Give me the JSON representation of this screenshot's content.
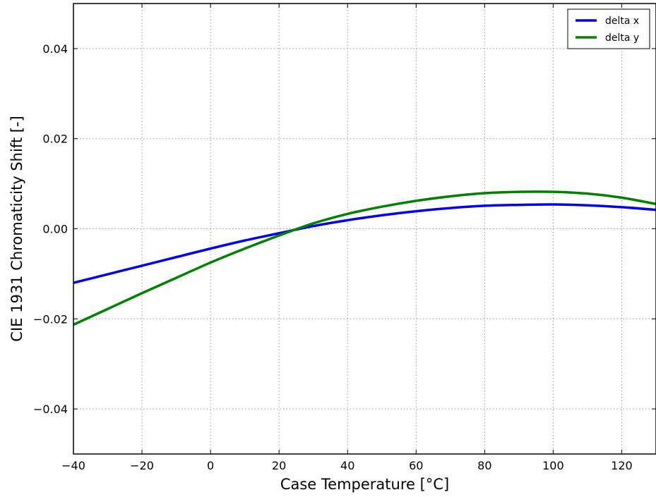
{
  "chart_data": {
    "type": "line",
    "title": "",
    "xlabel": "Case Temperature [°C]",
    "ylabel": "CIE 1931 Chromaticity Shift  [-]",
    "xlim": [
      -40,
      130
    ],
    "ylim": [
      -0.05,
      0.05
    ],
    "xticks": [
      -40,
      -20,
      0,
      20,
      40,
      60,
      80,
      100,
      120
    ],
    "yticks": [
      -0.04,
      -0.02,
      0.0,
      0.02,
      0.04
    ],
    "xtick_labels": [
      "−40",
      "−20",
      "0",
      "20",
      "40",
      "60",
      "80",
      "100",
      "120"
    ],
    "ytick_labels": [
      "−0.04",
      "−0.02",
      "0.00",
      "0.02",
      "0.04"
    ],
    "grid": true,
    "legend_position": "top-right",
    "x": [
      -40,
      -30,
      -20,
      -10,
      0,
      10,
      20,
      30,
      40,
      50,
      60,
      70,
      80,
      90,
      100,
      110,
      120,
      130
    ],
    "series": [
      {
        "name": "delta x",
        "color": "#0000ee",
        "values": [
          -0.012,
          -0.0101,
          -0.0082,
          -0.0063,
          -0.0044,
          -0.0026,
          -0.001,
          0.0006,
          0.0019,
          0.003,
          0.0039,
          0.0046,
          0.0051,
          0.0053,
          0.0054,
          0.0052,
          0.0048,
          0.0042
        ]
      },
      {
        "name": "delta y",
        "color": "#008000",
        "values": [
          -0.0213,
          -0.0178,
          -0.0143,
          -0.0109,
          -0.0075,
          -0.0044,
          -0.0015,
          0.0012,
          0.0033,
          0.0049,
          0.0062,
          0.0072,
          0.0079,
          0.0082,
          0.0082,
          0.0078,
          0.0069,
          0.0055
        ]
      }
    ]
  }
}
